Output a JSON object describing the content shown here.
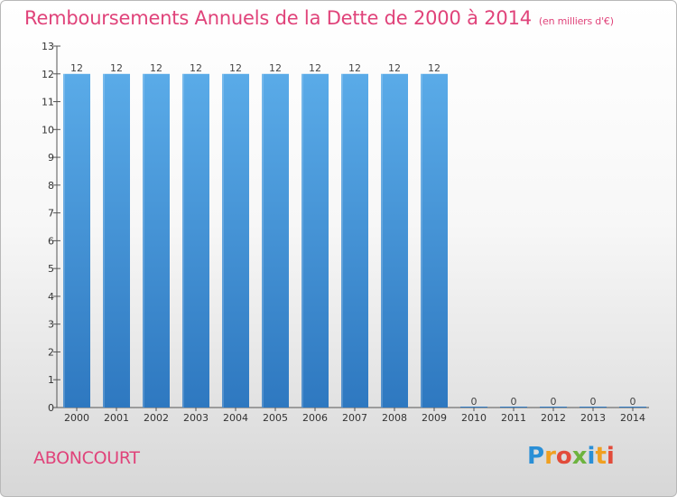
{
  "title": "Remboursements Annuels de la Dette de 2000 à 2014",
  "unit_note": "(en milliers d'€)",
  "commune": "ABONCOURT",
  "logo": {
    "text": "Proxiti",
    "letters": [
      "P",
      "r",
      "o",
      "x",
      "i",
      "t",
      "i"
    ]
  },
  "colors": {
    "title": "#e0437a",
    "bar_top": "#5aabe8",
    "bar_bottom": "#2e78c0"
  },
  "chart_data": {
    "type": "bar",
    "title": "Remboursements Annuels de la Dette de 2000 à 2014",
    "xlabel": "",
    "ylabel": "",
    "categories": [
      "2000",
      "2001",
      "2002",
      "2003",
      "2004",
      "2005",
      "2006",
      "2007",
      "2008",
      "2009",
      "2010",
      "2011",
      "2012",
      "2013",
      "2014"
    ],
    "values": [
      12,
      12,
      12,
      12,
      12,
      12,
      12,
      12,
      12,
      12,
      0,
      0,
      0,
      0,
      0
    ],
    "value_labels": [
      "12",
      "12",
      "12",
      "12",
      "12",
      "12",
      "12",
      "12",
      "12",
      "12",
      "0",
      "0",
      "0",
      "0",
      "0"
    ],
    "ylim": [
      0,
      13
    ],
    "yticks": [
      "0",
      "1",
      "2",
      "3",
      "4",
      "5",
      "6",
      "7",
      "8",
      "9",
      "10",
      "11",
      "12",
      "13"
    ],
    "grid": false,
    "legend": "none"
  }
}
